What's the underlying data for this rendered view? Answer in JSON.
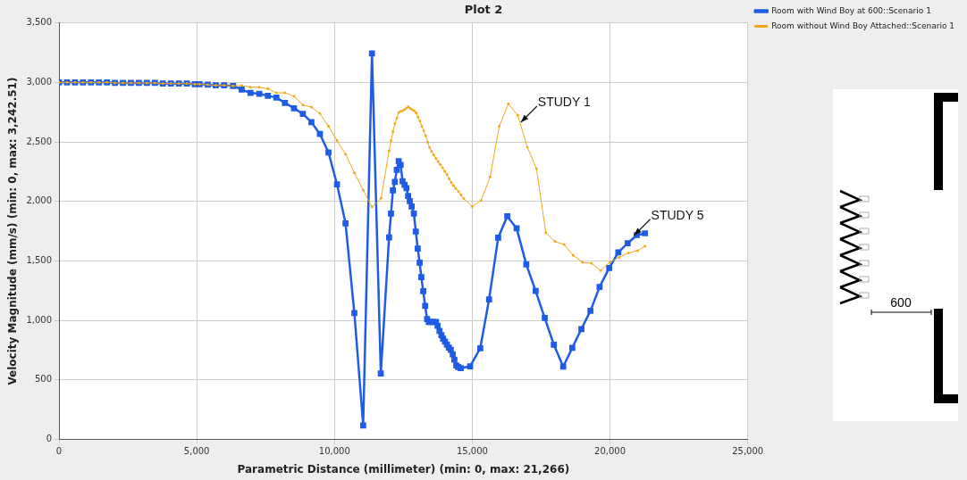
{
  "chart_data": {
    "type": "line",
    "title": "Plot 2",
    "xlabel": "Parametric Distance (millimeter) (min: 0, max: 21,266)",
    "ylabel": "Velocity Magnitude (mm/s) (min: 0, max: 3,242.51)",
    "xlim": [
      0,
      25000
    ],
    "ylim": [
      0,
      3500
    ],
    "xticks": [
      {
        "value": 0,
        "label": "0"
      },
      {
        "value": 5000,
        "label": "5,000"
      },
      {
        "value": 10000,
        "label": "10,000"
      },
      {
        "value": 15000,
        "label": "15,000"
      },
      {
        "value": 20000,
        "label": "20,000"
      },
      {
        "value": 25000,
        "label": "25,000"
      }
    ],
    "yticks": [
      {
        "value": 0,
        "label": "0"
      },
      {
        "value": 500,
        "label": "500"
      },
      {
        "value": 1000,
        "label": "1,000"
      },
      {
        "value": 1500,
        "label": "1,500"
      },
      {
        "value": 2000,
        "label": "2,000"
      },
      {
        "value": 2500,
        "label": "2,500"
      },
      {
        "value": 3000,
        "label": "3,000"
      },
      {
        "value": 3500,
        "label": "3,500"
      }
    ],
    "grid": true,
    "legend": "top right",
    "marker": "square",
    "line_style": "solid",
    "series": [
      {
        "name": "Room with Wind Boy at 600::Scenario 1",
        "color": "#1f5ce6",
        "x": [
          0,
          290,
          580,
          870,
          1160,
          1450,
          1740,
          2030,
          2320,
          2610,
          2900,
          3190,
          3480,
          3770,
          4060,
          4350,
          4640,
          4930,
          5100,
          5400,
          5690,
          5990,
          6320,
          6630,
          6950,
          7270,
          7580,
          7890,
          8200,
          8530,
          8850,
          9160,
          9470,
          9780,
          10090,
          10400,
          10720,
          11040,
          11360,
          11680,
          11980,
          12050,
          12120,
          12190,
          12260,
          12330,
          12400,
          12470,
          12540,
          12610,
          12670,
          12730,
          12800,
          12880,
          12950,
          13020,
          13090,
          13150,
          13220,
          13290,
          13360,
          13420,
          13500,
          13580,
          13680,
          13740,
          13810,
          13880,
          13940,
          14010,
          14080,
          14150,
          14220,
          14290,
          14350,
          14420,
          14490,
          14580,
          14920,
          15290,
          15610,
          15940,
          16270,
          16610,
          16960,
          17300,
          17630,
          17960,
          18300,
          18630,
          18960,
          19290,
          19620,
          19970,
          20300,
          20640,
          20970,
          21266
        ],
        "values": [
          3000,
          3000,
          3000,
          3000,
          3000,
          3000,
          3000,
          2995,
          2995,
          2995,
          2995,
          2995,
          2995,
          2990,
          2990,
          2990,
          2990,
          2985,
          2985,
          2980,
          2975,
          2975,
          2970,
          2939,
          2912,
          2904,
          2887,
          2872,
          2827,
          2783,
          2735,
          2666,
          2566,
          2412,
          2144,
          1816,
          1063,
          117,
          3243,
          555,
          1697,
          1897,
          2092,
          2164,
          2265,
          2339,
          2307,
          2169,
          2139,
          2112,
          2045,
          2003,
          1957,
          1897,
          1747,
          1604,
          1485,
          1364,
          1246,
          1123,
          1012,
          987,
          987,
          987,
          987,
          955,
          913,
          876,
          846,
          822,
          797,
          772,
          753,
          716,
          671,
          622,
          609,
          600,
          614,
          767,
          1177,
          1695,
          1875,
          1774,
          1471,
          1248,
          1021,
          797,
          612,
          770,
          928,
          1081,
          1281,
          1441,
          1572,
          1648,
          1717,
          1732
        ]
      },
      {
        "name": "Room without Wind Boy Attached::Scenario 1",
        "color": "#f0a818",
        "x": [
          0,
          290,
          580,
          870,
          1160,
          1450,
          1740,
          2030,
          2320,
          2610,
          2900,
          3190,
          3480,
          3770,
          4060,
          4350,
          4640,
          4930,
          5100,
          5400,
          5690,
          5990,
          6320,
          6630,
          6950,
          7270,
          7580,
          7890,
          8200,
          8530,
          8850,
          9160,
          9470,
          9780,
          10090,
          10400,
          10720,
          11040,
          11360,
          11690,
          11980,
          12050,
          12120,
          12190,
          12260,
          12330,
          12400,
          12470,
          12540,
          12610,
          12680,
          12750,
          12820,
          12890,
          12960,
          13030,
          13100,
          13170,
          13240,
          13310,
          13380,
          13450,
          13520,
          13600,
          13680,
          13760,
          13840,
          13920,
          14000,
          14080,
          14160,
          14240,
          14320,
          14400,
          14500,
          14590,
          14690,
          15000,
          15320,
          15650,
          15980,
          16310,
          16650,
          17000,
          17330,
          17670,
          18000,
          18330,
          18660,
          19000,
          19330,
          19660,
          19990,
          20330,
          20670,
          21000,
          21266
        ],
        "values": [
          3000,
          3000,
          3000,
          3000,
          3000,
          3000,
          3000,
          2995,
          2995,
          2995,
          2995,
          2995,
          2995,
          2990,
          2990,
          2990,
          2990,
          2985,
          2985,
          2980,
          2975,
          2975,
          2970,
          2974,
          2959,
          2959,
          2947,
          2912,
          2912,
          2884,
          2810,
          2792,
          2738,
          2631,
          2512,
          2397,
          2241,
          2094,
          1953,
          2027,
          2425,
          2509,
          2586,
          2652,
          2699,
          2746,
          2756,
          2761,
          2771,
          2783,
          2795,
          2781,
          2771,
          2761,
          2744,
          2709,
          2675,
          2630,
          2593,
          2551,
          2497,
          2453,
          2420,
          2391,
          2361,
          2334,
          2309,
          2282,
          2253,
          2226,
          2191,
          2159,
          2132,
          2107,
          2082,
          2055,
          2023,
          1957,
          2008,
          2206,
          2633,
          2820,
          2724,
          2455,
          2275,
          1737,
          1663,
          1638,
          1547,
          1488,
          1480,
          1419,
          1490,
          1530,
          1567,
          1586,
          1624
        ]
      }
    ],
    "annotations": [
      {
        "text": "STUDY 1",
        "x": 16700,
        "y": 2650
      },
      {
        "text": "STUDY 5",
        "x": 20810,
        "y": 1700
      },
      "600"
    ]
  }
}
